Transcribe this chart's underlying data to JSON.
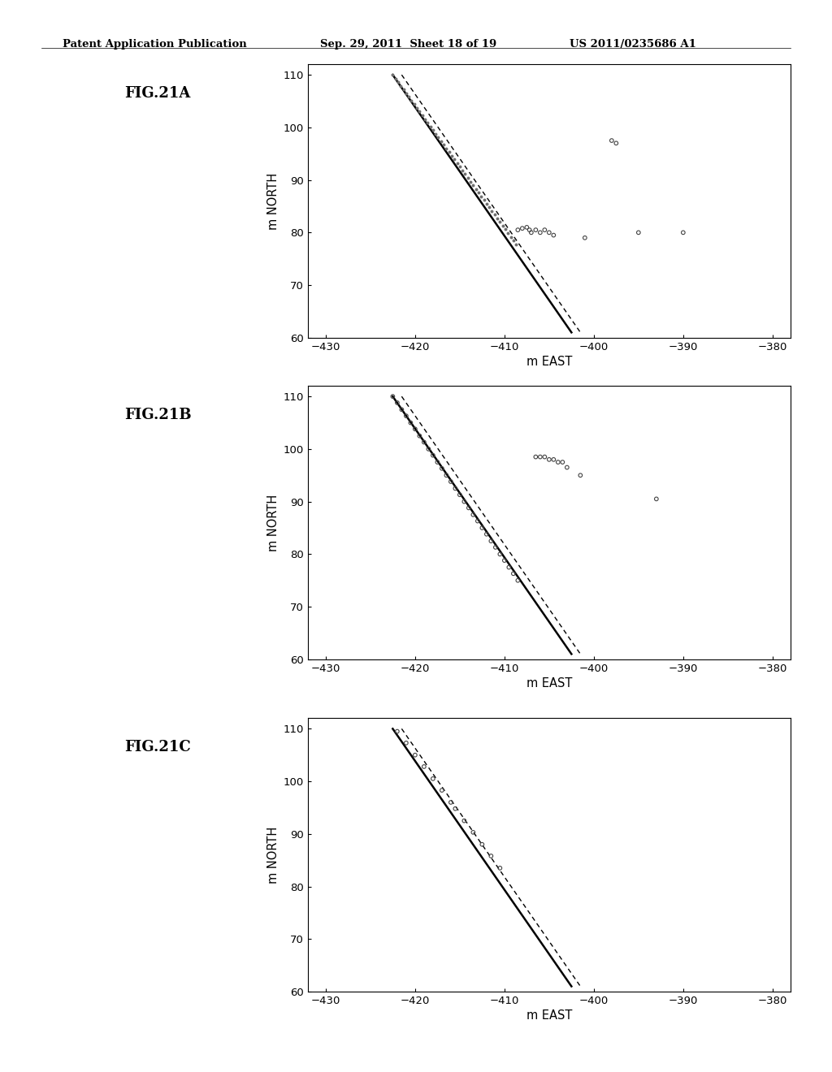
{
  "header_left": "Patent Application Publication",
  "header_mid": "Sep. 29, 2011  Sheet 18 of 19",
  "header_right": "US 2011/0235686 A1",
  "background_color": "#ffffff",
  "figures": [
    {
      "label": "FIG.21A",
      "xlim": [
        -432,
        -378
      ],
      "ylim": [
        60,
        112
      ],
      "xticks": [
        -430,
        -420,
        -410,
        -400,
        -390,
        -380
      ],
      "yticks": [
        60,
        70,
        80,
        90,
        100,
        110
      ],
      "xlabel": "m EAST",
      "ylabel": "m NORTH",
      "solid_line_x": [
        -422.5,
        -402.5
      ],
      "solid_line_y": [
        110,
        61
      ],
      "dashed_line_x": [
        -421.5,
        -401.5
      ],
      "dashed_line_y": [
        110,
        61
      ],
      "main_scatter_x": [
        -422.5,
        -422.2,
        -421.9,
        -421.6,
        -421.3,
        -421.0,
        -420.7,
        -420.4,
        -420.1,
        -419.8,
        -419.5,
        -419.2,
        -418.9,
        -418.6,
        -418.3,
        -418.0,
        -417.7,
        -417.4,
        -417.1,
        -416.8,
        -416.5,
        -416.2,
        -415.9,
        -415.6,
        -415.3,
        -415.0,
        -414.7,
        -414.4,
        -414.1,
        -413.8,
        -413.5,
        -413.2,
        -412.9,
        -412.6,
        -412.3,
        -412.0,
        -411.7,
        -411.4,
        -411.1,
        -410.8,
        -410.5,
        -410.2,
        -409.9,
        -409.6,
        -409.3,
        -409.0,
        -408.7
      ],
      "main_scatter_y": [
        110,
        109.3,
        108.6,
        107.9,
        107.2,
        106.5,
        105.8,
        105.1,
        104.4,
        103.7,
        103.0,
        102.3,
        101.6,
        100.9,
        100.2,
        99.5,
        98.8,
        98.1,
        97.4,
        96.7,
        96.0,
        95.3,
        94.6,
        93.9,
        93.2,
        92.5,
        91.8,
        91.1,
        90.4,
        89.7,
        89.0,
        88.3,
        87.6,
        86.9,
        86.2,
        85.5,
        84.8,
        84.1,
        83.4,
        82.7,
        82.0,
        81.3,
        80.6,
        79.9,
        79.2,
        78.5,
        77.8
      ],
      "main_scatter_filled": true,
      "extra_scatter_x": [
        -408.5,
        -408.0,
        -407.5,
        -407.2,
        -407.0,
        -406.5,
        -406.0,
        -405.5,
        -405.0,
        -404.5,
        -401.0,
        -395.0,
        -390.0
      ],
      "extra_scatter_y": [
        80.5,
        80.8,
        81.0,
        80.5,
        80.0,
        80.5,
        80.0,
        80.5,
        80.0,
        79.5,
        79.0,
        80.0,
        80.0
      ],
      "extra2_scatter_x": [
        -398.0,
        -397.5
      ],
      "extra2_scatter_y": [
        97.5,
        97.0
      ]
    },
    {
      "label": "FIG.21B",
      "xlim": [
        -432,
        -378
      ],
      "ylim": [
        60,
        112
      ],
      "xticks": [
        -430,
        -420,
        -410,
        -400,
        -390,
        -380
      ],
      "yticks": [
        60,
        70,
        80,
        90,
        100,
        110
      ],
      "xlabel": "m EAST",
      "ylabel": "m NORTH",
      "solid_line_x": [
        -422.5,
        -402.5
      ],
      "solid_line_y": [
        110,
        61
      ],
      "dashed_line_x": [
        -421.5,
        -401.5
      ],
      "dashed_line_y": [
        110,
        61
      ],
      "main_scatter_x": [
        -422.5,
        -422.0,
        -421.5,
        -421.0,
        -420.5,
        -420.0,
        -419.5,
        -419.0,
        -418.5,
        -418.0,
        -417.5,
        -417.0,
        -416.5,
        -416.0,
        -415.5,
        -415.0,
        -414.5,
        -414.0,
        -413.5,
        -413.0,
        -412.5,
        -412.0,
        -411.5,
        -411.0,
        -410.5,
        -410.0,
        -409.5,
        -409.0,
        -408.5
      ],
      "main_scatter_y": [
        110,
        108.8,
        107.5,
        106.3,
        105.0,
        103.8,
        102.5,
        101.3,
        100.0,
        98.8,
        97.5,
        96.3,
        95.0,
        93.8,
        92.5,
        91.3,
        90.0,
        88.8,
        87.5,
        86.3,
        85.0,
        83.8,
        82.5,
        81.3,
        80.0,
        78.8,
        77.5,
        76.3,
        75.0
      ],
      "main_scatter_filled": false,
      "extra_scatter_x": [
        -406.5,
        -406.0,
        -405.5,
        -405.0,
        -404.5,
        -404.0,
        -403.5,
        -403.0,
        -401.5,
        -393.0
      ],
      "extra_scatter_y": [
        98.5,
        98.5,
        98.5,
        98.0,
        98.0,
        97.5,
        97.5,
        96.5,
        95.0,
        90.5
      ],
      "extra2_scatter_x": [],
      "extra2_scatter_y": []
    },
    {
      "label": "FIG.21C",
      "xlim": [
        -432,
        -378
      ],
      "ylim": [
        60,
        112
      ],
      "xticks": [
        -430,
        -420,
        -410,
        -400,
        -390,
        -380
      ],
      "yticks": [
        60,
        70,
        80,
        90,
        100,
        110
      ],
      "xlabel": "m EAST",
      "ylabel": "m NORTH",
      "solid_line_x": [
        -422.5,
        -402.5
      ],
      "solid_line_y": [
        110,
        61
      ],
      "dashed_line_x": [
        -421.5,
        -401.5
      ],
      "dashed_line_y": [
        110,
        61
      ],
      "main_scatter_x": [
        -422.0,
        -421.0,
        -420.0,
        -419.0,
        -418.0,
        -417.0,
        -416.0,
        -415.5,
        -414.5,
        -413.5,
        -412.5,
        -411.5,
        -410.5
      ],
      "main_scatter_y": [
        109.5,
        107.3,
        105.0,
        102.8,
        100.5,
        98.3,
        96.0,
        94.8,
        92.5,
        90.3,
        88.0,
        85.8,
        83.5
      ],
      "main_scatter_filled": false,
      "extra_scatter_x": [],
      "extra_scatter_y": [],
      "extra2_scatter_x": [],
      "extra2_scatter_y": []
    }
  ]
}
